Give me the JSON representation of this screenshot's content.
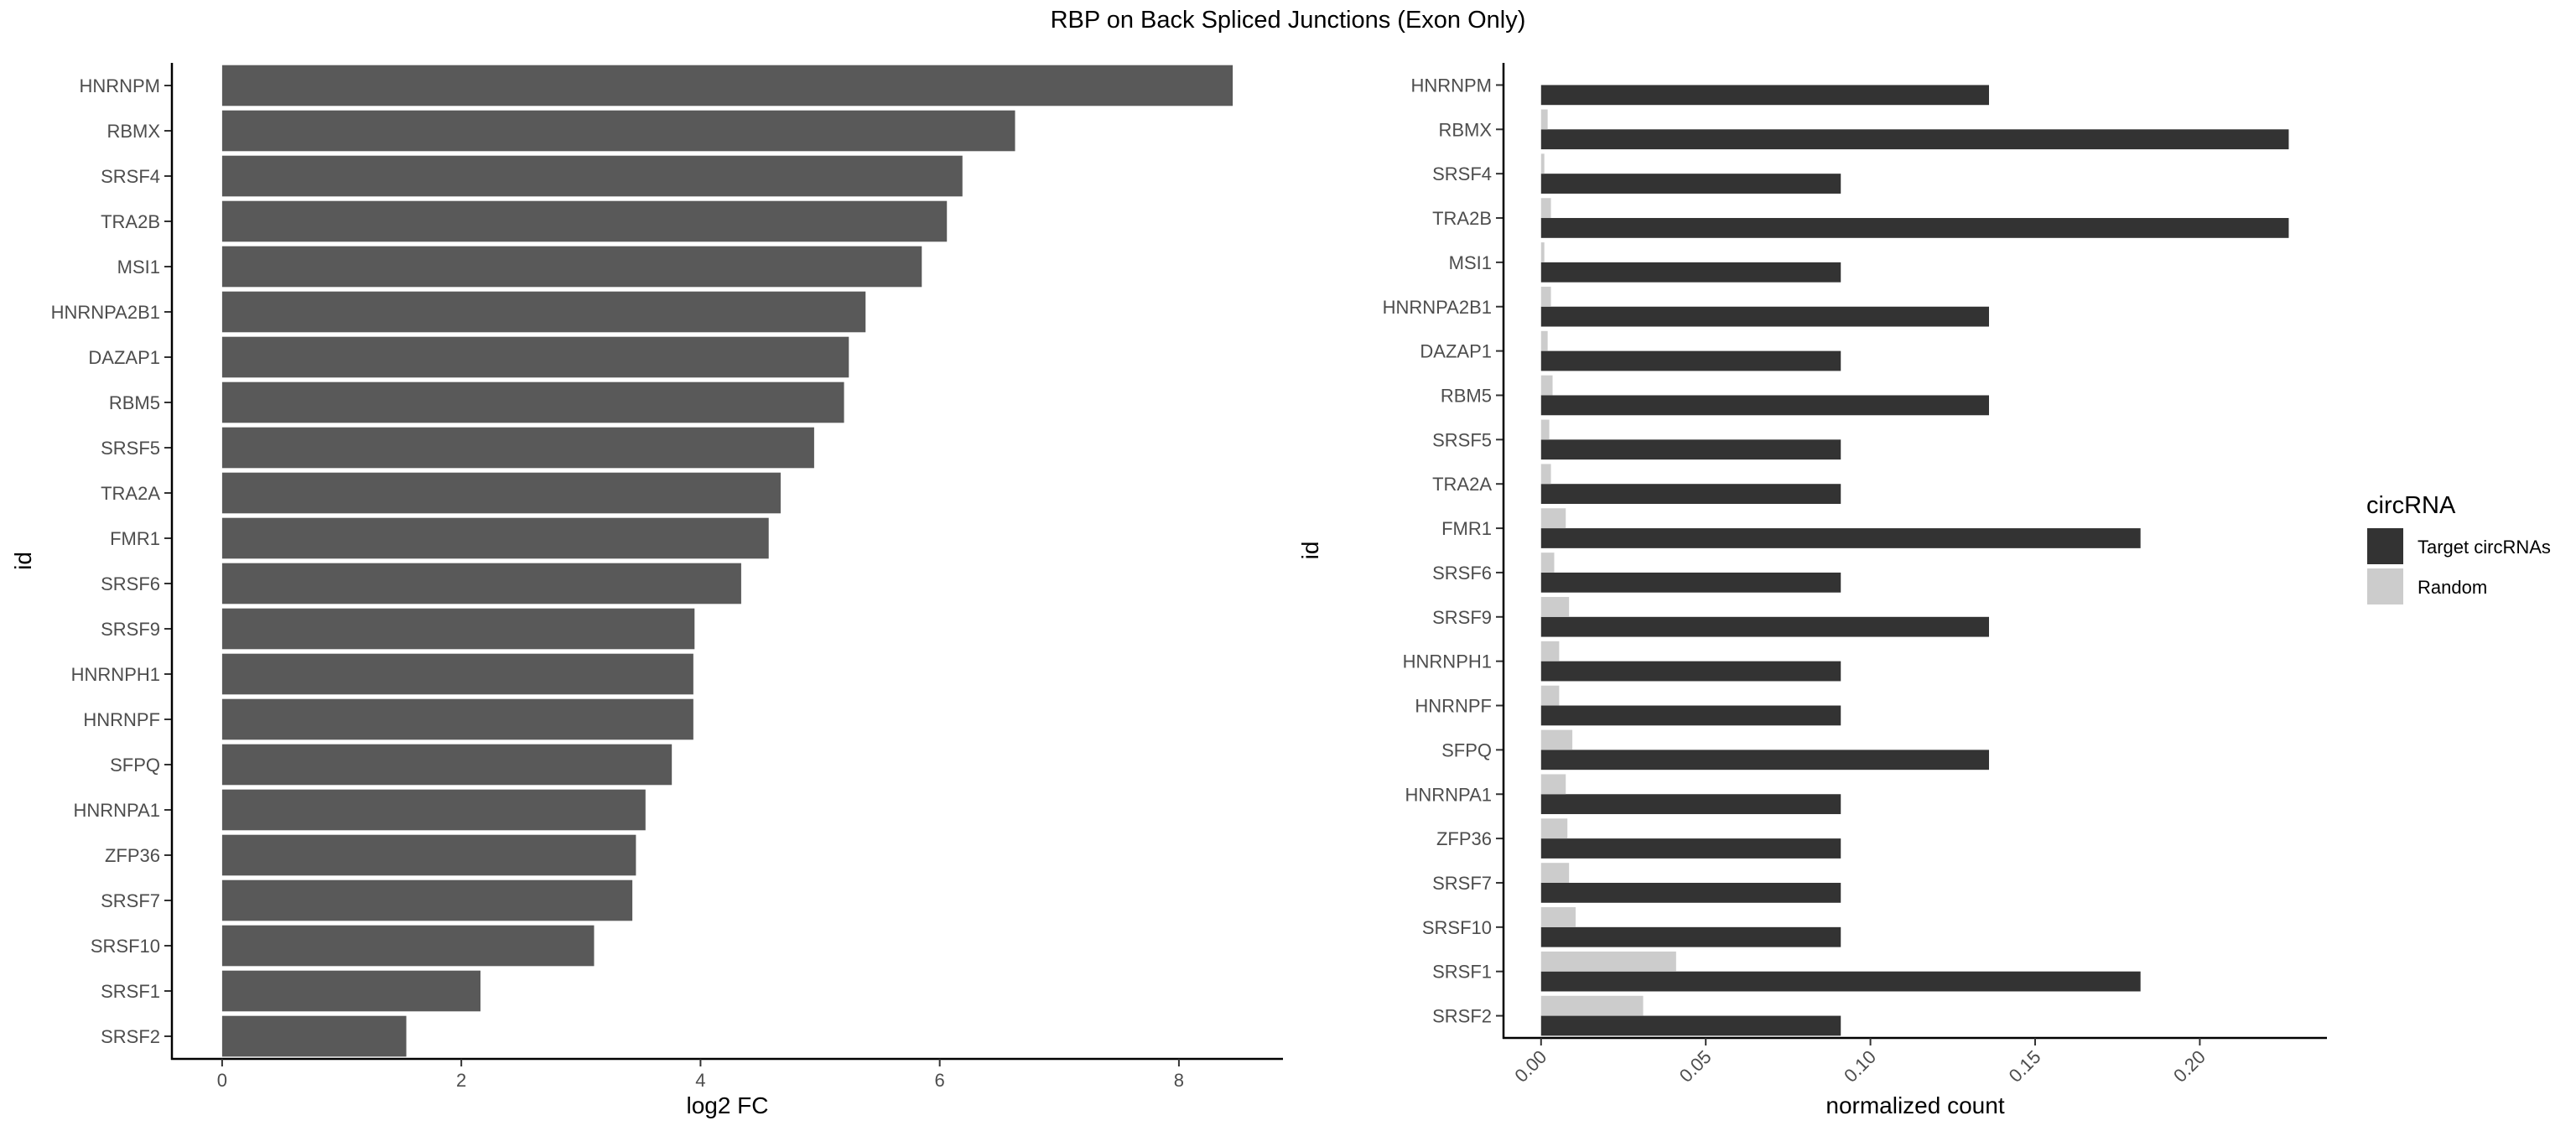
{
  "title": "RBP on Back Spliced Junctions (Exon Only)",
  "colors": {
    "bar_left": "#595959",
    "target": "#333333",
    "random": "#CCCCCC",
    "axis": "#000000",
    "tick_label": "#4D4D4D"
  },
  "chart_data": [
    {
      "type": "bar",
      "orientation": "horizontal",
      "categories": [
        "HNRNPM",
        "RBMX",
        "SRSF4",
        "TRA2B",
        "MSI1",
        "HNRNPA2B1",
        "DAZAP1",
        "RBM5",
        "SRSF5",
        "TRA2A",
        "FMR1",
        "SRSF6",
        "SRSF9",
        "HNRNPH1",
        "HNRNPF",
        "SFPQ",
        "HNRNPA1",
        "ZFP36",
        "SRSF7",
        "SRSF10",
        "SRSF1",
        "SRSF2"
      ],
      "values": [
        8.45,
        6.63,
        6.19,
        6.06,
        5.85,
        5.38,
        5.24,
        5.2,
        4.95,
        4.67,
        4.57,
        4.34,
        3.95,
        3.94,
        3.94,
        3.76,
        3.54,
        3.46,
        3.43,
        3.11,
        2.16,
        1.54
      ],
      "xlabel": "log2 FC",
      "ylabel": "id",
      "xlim": [
        -0.42,
        8.87
      ],
      "xticks": [
        0,
        2,
        4,
        6,
        8
      ],
      "grid": false,
      "legend": "none"
    },
    {
      "type": "bar",
      "orientation": "horizontal",
      "grouped": true,
      "categories": [
        "HNRNPM",
        "RBMX",
        "SRSF4",
        "TRA2B",
        "MSI1",
        "HNRNPA2B1",
        "DAZAP1",
        "RBM5",
        "SRSF5",
        "TRA2A",
        "FMR1",
        "SRSF6",
        "SRSF9",
        "HNRNPH1",
        "HNRNPF",
        "SFPQ",
        "HNRNPA1",
        "ZFP36",
        "SRSF7",
        "SRSF10",
        "SRSF1",
        "SRSF2"
      ],
      "series": [
        {
          "name": "Target circRNAs",
          "values": [
            0.136,
            0.227,
            0.091,
            0.227,
            0.091,
            0.136,
            0.091,
            0.136,
            0.091,
            0.091,
            0.182,
            0.091,
            0.136,
            0.091,
            0.091,
            0.136,
            0.091,
            0.091,
            0.091,
            0.091,
            0.182,
            0.091
          ]
        },
        {
          "name": "Random",
          "values": [
            0.0,
            0.002,
            0.001,
            0.003,
            0.001,
            0.003,
            0.002,
            0.0035,
            0.0025,
            0.003,
            0.0075,
            0.004,
            0.0085,
            0.0055,
            0.0055,
            0.0095,
            0.0075,
            0.008,
            0.0085,
            0.0105,
            0.041,
            0.031
          ]
        }
      ],
      "xlabel": "normalized count",
      "ylabel": "id",
      "xlim": [
        -0.0114,
        0.2386
      ],
      "xticks": [
        "0.00",
        "0.05",
        "0.10",
        "0.15",
        "0.20"
      ],
      "legend": {
        "title": "circRNA",
        "position": "right"
      },
      "grid": false
    }
  ]
}
